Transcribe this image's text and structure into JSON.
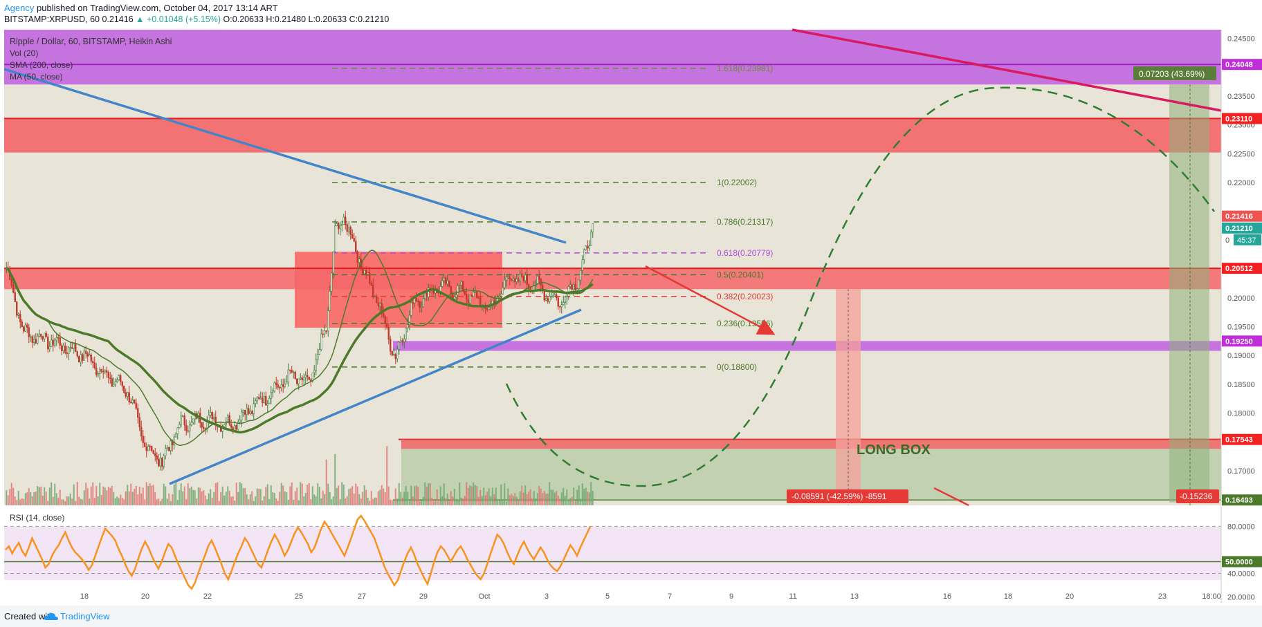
{
  "header": {
    "author": "Agency",
    "published": "published on TradingView.com, October 04, 2017 13:14 ART",
    "symbol_line_prefix": "BITSTAMP:XRPUSD, 60 0.21416",
    "change": "▲ +0.01048 (+5.15%)",
    "ohlc": "O:0.20633 H:0.21480 L:0.20633 C:0.21210"
  },
  "legend": {
    "title": "Ripple / Dollar, 60, BITSTAMP, Heikin Ashi",
    "vol": "Vol (20)",
    "sma": "SMA (200, close)",
    "ma": "MA (50, close)"
  },
  "rsi": {
    "label": "RSI (14, close)"
  },
  "footer": {
    "created": "Created with",
    "brand": "TradingView"
  },
  "colors": {
    "blue_trend": "#4285c8",
    "green_ma": "#4c7a2a",
    "red_zone": "#f4666a",
    "purple_zone": "#c066e0",
    "rsi_line": "#f7931e"
  },
  "icons": {
    "brand_logo": "tradingview-cloud-icon"
  },
  "chart_data": {
    "type": "candlestick",
    "price_axis": {
      "range": [
        0.164,
        0.2465
      ],
      "ticks": [
        "0.24500",
        "0.23500",
        "0.23000",
        "0.22500",
        "0.22000",
        "0.20000",
        "0.19500",
        "0.19000",
        "0.18500",
        "0.18000",
        "0.17000"
      ]
    },
    "x_ticks": [
      "18",
      "20",
      "22",
      "25",
      "27",
      "29",
      "Oct",
      "3",
      "5",
      "7",
      "9",
      "11",
      "13",
      "16",
      "18",
      "20",
      "23",
      "18:00"
    ],
    "price_labels": [
      {
        "value": 0.24048,
        "text": "0.24048",
        "color": "#c02ed9"
      },
      {
        "value": 0.2311,
        "text": "0.23110",
        "color": "#f22222"
      },
      {
        "value": 0.21416,
        "text": "0.21416",
        "color": "#ef5350"
      },
      {
        "value": 0.2121,
        "text": "0.21210",
        "color": "#26a69a"
      },
      {
        "value": 0.20512,
        "text": "0.20512",
        "color": "#f22222"
      },
      {
        "value": 0.1925,
        "text": "0.19250",
        "color": "#c02ed9"
      },
      {
        "value": 0.17543,
        "text": "0.17543",
        "color": "#f22222"
      },
      {
        "value": 0.16493,
        "text": "0.16493",
        "color": "#4c7a2a"
      }
    ],
    "countdown": "45:37",
    "countdown_prefix": "0",
    "fib_levels": [
      {
        "value": 0.23981,
        "text": "1.618(0.23981)",
        "color": "#6a8f3a"
      },
      {
        "value": 0.22002,
        "text": "1(0.22002)",
        "color": "#4c7a2a"
      },
      {
        "value": 0.21317,
        "text": "0.786(0.21317)",
        "color": "#4c7a2a"
      },
      {
        "value": 0.20779,
        "text": "0.618(0.20779)",
        "color": "#b04ae0"
      },
      {
        "value": 0.20401,
        "text": "0.5(0.20401)",
        "color": "#4c7a2a"
      },
      {
        "value": 0.20023,
        "text": "0.382(0.20023)",
        "color": "#e53935"
      },
      {
        "value": 0.19556,
        "text": "0.236(0.19556)",
        "color": "#4c7a2a"
      },
      {
        "value": 0.188,
        "text": "0(0.18800)",
        "color": "#4c7a2a"
      }
    ],
    "annotations": {
      "long_box": "LONG BOX",
      "target": "0.07203 (43.69%)",
      "stop": "-0.08591 (-42.59%) -8591",
      "stop2": "-0.15236"
    },
    "rsi_axis": {
      "range": [
        15,
        92
      ],
      "ticks": [
        "80.0000",
        "50.0000",
        "40.0000",
        "20.0000"
      ]
    },
    "rsi_values": [
      60,
      63,
      57,
      62,
      66,
      59,
      55,
      62,
      70,
      64,
      58,
      52,
      45,
      48,
      55,
      60,
      64,
      70,
      75,
      68,
      62,
      58,
      55,
      52,
      48,
      43,
      47,
      55,
      63,
      71,
      78,
      75,
      72,
      68,
      61,
      55,
      48,
      42,
      38,
      44,
      53,
      61,
      67,
      62,
      55,
      49,
      44,
      50,
      58,
      65,
      62,
      55,
      48,
      42,
      36,
      30,
      27,
      32,
      40,
      48,
      55,
      63,
      68,
      62,
      55,
      48,
      40,
      35,
      42,
      50,
      57,
      63,
      70,
      66,
      60,
      54,
      48,
      45,
      52,
      60,
      67,
      73,
      68,
      62,
      55,
      60,
      67,
      74,
      79,
      75,
      70,
      65,
      58,
      62,
      70,
      78,
      84,
      80,
      75,
      70,
      65,
      60,
      55,
      62,
      70,
      78,
      86,
      89,
      85,
      80,
      75,
      70,
      62,
      54,
      46,
      40,
      35,
      30,
      34,
      42,
      50,
      57,
      62,
      56,
      48,
      42,
      36,
      31,
      40,
      50,
      58,
      63,
      60,
      55,
      50,
      55,
      60,
      63,
      58,
      52,
      47,
      42,
      38,
      35,
      40,
      48,
      57,
      65,
      73,
      70,
      65,
      58,
      52,
      48,
      55,
      62,
      67,
      61,
      56,
      52,
      57,
      62,
      58,
      52,
      47,
      44,
      42,
      46,
      52,
      58,
      64,
      60,
      55,
      62,
      68,
      74,
      80
    ]
  }
}
